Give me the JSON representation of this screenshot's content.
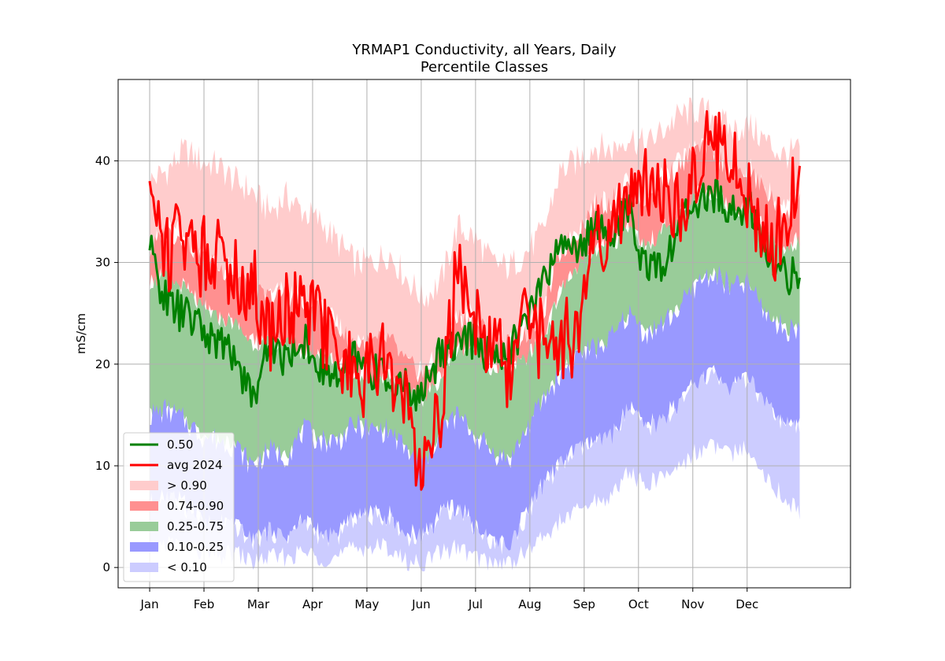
{
  "chart_data": {
    "type": "area",
    "title": "YRMAP1 Conductivity, all Years, Daily",
    "subtitle": "Percentile Classes",
    "xlabel": "",
    "ylabel": "mS/cm",
    "ylim": [
      -2,
      48
    ],
    "xlim": [
      -18,
      400
    ],
    "grid": true,
    "legend_position": "lower-left",
    "x_ticks": [
      {
        "label": "Jan",
        "day": 0
      },
      {
        "label": "Feb",
        "day": 31
      },
      {
        "label": "Mar",
        "day": 62
      },
      {
        "label": "Apr",
        "day": 93
      },
      {
        "label": "May",
        "day": 124
      },
      {
        "label": "Jun",
        "day": 155
      },
      {
        "label": "Jul",
        "day": 186
      },
      {
        "label": "Aug",
        "day": 217
      },
      {
        "label": "Sep",
        "day": 248
      },
      {
        "label": "Oct",
        "day": 279
      },
      {
        "label": "Nov",
        "day": 310
      },
      {
        "label": "Dec",
        "day": 341
      }
    ],
    "y_ticks": [
      0,
      10,
      20,
      30,
      40
    ],
    "x_end": 371,
    "key_days": [
      0,
      15,
      31,
      46,
      62,
      77,
      93,
      108,
      124,
      139,
      155,
      170,
      186,
      201,
      217,
      232,
      248,
      263,
      279,
      294,
      310,
      325,
      341,
      356,
      371
    ],
    "series": [
      {
        "name": "0.50",
        "kind": "line",
        "color": "#008000",
        "values": [
          31.2,
          26.0,
          25.0,
          23.5,
          22.0,
          21.0,
          16.5,
          22.0,
          20.5,
          22.5,
          19.5,
          18.5,
          20.5,
          19.5,
          18.5,
          17.5,
          17.0,
          21.5,
          22.0,
          22.5,
          20.5,
          21.5,
          24.0,
          28.0,
          32.0,
          31.5,
          33.5,
          33.0,
          35.0,
          29.5,
          29.0,
          34.0,
          36.0,
          36.5,
          35.0,
          35.5,
          31.0,
          29.0,
          28.5
        ]
      },
      {
        "name": "avg 2024",
        "kind": "line",
        "color": "#ff0000",
        "values": [
          38.0,
          31.0,
          33.5,
          30.5,
          32.0,
          29.0,
          28.0,
          23.0,
          26.0,
          25.0,
          24.5,
          20.0,
          18.5,
          19.0,
          21.0,
          15.0,
          10.0,
          16.0,
          30.0,
          25.0,
          22.0,
          19.0,
          24.0,
          22.0,
          23.0,
          22.0,
          31.0,
          33.0,
          36.0,
          37.0,
          38.0,
          36.0,
          39.0,
          42.0,
          39.0,
          37.0,
          33.0,
          32.0,
          39.5
        ]
      },
      {
        "name": "> 0.90",
        "kind": "band",
        "color": "#ffcccc",
        "low": [
          31.0,
          33.0,
          32.5,
          30.5,
          29.5,
          29.0,
          27.0,
          26.5,
          27.0,
          25.5,
          25.0,
          23.5,
          22.0,
          22.0,
          22.5,
          20.0,
          19.0,
          21.0,
          24.5,
          24.5,
          22.5,
          22.0,
          23.0,
          25.0,
          31.0,
          33.0,
          35.5,
          36.0,
          37.5,
          36.0,
          38.0,
          39.5,
          41.0,
          41.0,
          38.5,
          39.0,
          37.0,
          35.0,
          36.0
        ],
        "high": [
          38.0,
          39.0,
          41.0,
          40.0,
          39.5,
          38.0,
          37.0,
          35.0,
          36.5,
          35.0,
          34.0,
          32.0,
          30.0,
          30.0,
          31.0,
          28.5,
          26.5,
          28.0,
          33.5,
          32.5,
          30.0,
          29.5,
          31.0,
          33.0,
          39.0,
          40.0,
          41.5,
          41.0,
          42.5,
          41.5,
          43.0,
          44.5,
          45.0,
          44.5,
          43.0,
          43.5,
          42.0,
          40.5,
          41.0
        ]
      },
      {
        "name": "0.74-0.90",
        "kind": "band",
        "color": "#ff9090",
        "low": [
          28.0,
          28.5,
          27.5,
          25.5,
          24.5,
          24.0,
          22.0,
          22.0,
          22.0,
          21.0,
          21.0,
          20.0,
          19.0,
          18.5,
          19.0,
          17.0,
          16.5,
          18.5,
          21.5,
          21.5,
          19.5,
          19.5,
          20.5,
          22.5,
          27.0,
          29.5,
          31.0,
          31.5,
          33.5,
          31.5,
          33.0,
          34.5,
          36.5,
          37.0,
          35.0,
          35.5,
          33.0,
          31.5,
          32.0
        ],
        "high": [
          31.0,
          33.0,
          32.5,
          30.5,
          29.5,
          29.0,
          27.0,
          26.5,
          27.0,
          25.5,
          25.0,
          23.5,
          22.0,
          22.0,
          22.5,
          20.0,
          19.0,
          21.0,
          24.5,
          24.5,
          22.5,
          22.0,
          23.0,
          25.0,
          31.0,
          33.0,
          35.5,
          36.0,
          37.5,
          36.0,
          38.0,
          39.5,
          41.0,
          41.0,
          38.5,
          39.0,
          37.0,
          35.0,
          36.0
        ]
      },
      {
        "name": "0.25-0.75",
        "kind": "band",
        "color": "#99cc99",
        "low": [
          15.0,
          15.5,
          14.5,
          13.0,
          12.5,
          12.0,
          10.0,
          11.5,
          11.0,
          13.5,
          12.5,
          12.5,
          14.0,
          13.5,
          13.5,
          11.5,
          10.0,
          13.5,
          15.0,
          13.0,
          11.5,
          10.5,
          13.5,
          16.5,
          19.0,
          21.0,
          21.5,
          22.5,
          25.0,
          23.0,
          24.0,
          25.5,
          28.0,
          29.0,
          27.5,
          28.0,
          25.0,
          23.5,
          23.5
        ],
        "high": [
          28.0,
          28.5,
          27.5,
          25.5,
          24.5,
          24.0,
          22.0,
          22.0,
          22.0,
          21.0,
          21.0,
          20.0,
          19.0,
          18.5,
          19.0,
          17.0,
          16.5,
          18.5,
          21.5,
          21.5,
          19.5,
          19.5,
          20.5,
          22.5,
          27.0,
          29.5,
          31.0,
          31.5,
          33.5,
          31.5,
          33.0,
          34.5,
          36.5,
          37.0,
          35.0,
          35.5,
          33.0,
          31.5,
          32.0
        ]
      },
      {
        "name": "0.10-0.25",
        "kind": "band",
        "color": "#9999ff",
        "low": [
          6.0,
          7.0,
          6.0,
          4.5,
          4.0,
          4.0,
          2.5,
          3.5,
          3.0,
          4.5,
          3.0,
          3.0,
          5.0,
          5.0,
          5.0,
          3.0,
          3.0,
          5.0,
          6.0,
          4.0,
          2.5,
          2.0,
          5.0,
          8.0,
          10.0,
          11.5,
          12.0,
          13.0,
          15.5,
          13.5,
          14.5,
          16.0,
          18.0,
          19.0,
          17.5,
          18.5,
          16.0,
          14.0,
          13.5
        ],
        "high": [
          15.0,
          15.5,
          14.5,
          13.0,
          12.5,
          12.0,
          10.0,
          11.5,
          11.0,
          13.5,
          12.5,
          12.5,
          14.0,
          13.5,
          13.5,
          11.5,
          10.0,
          13.5,
          15.0,
          13.0,
          11.5,
          10.5,
          13.5,
          16.5,
          19.0,
          21.0,
          21.5,
          22.5,
          25.0,
          23.0,
          24.0,
          25.5,
          28.0,
          29.0,
          27.5,
          28.0,
          25.0,
          23.5,
          23.5
        ]
      },
      {
        "name": "< 0.10",
        "kind": "band",
        "color": "#ccccff",
        "low": [
          1.5,
          2.5,
          2.0,
          1.5,
          1.0,
          1.5,
          0.5,
          1.0,
          1.0,
          1.5,
          1.0,
          1.0,
          2.0,
          2.0,
          2.0,
          0.5,
          0.5,
          1.5,
          2.0,
          1.0,
          0.5,
          0.5,
          1.5,
          3.0,
          4.5,
          5.5,
          6.5,
          7.0,
          9.5,
          8.0,
          9.0,
          10.0,
          11.5,
          12.0,
          11.0,
          12.0,
          9.0,
          7.0,
          5.5
        ],
        "high": [
          6.0,
          7.0,
          6.0,
          4.5,
          4.0,
          4.0,
          2.5,
          3.5,
          3.0,
          4.5,
          3.0,
          3.0,
          5.0,
          5.0,
          5.0,
          3.0,
          3.0,
          5.0,
          6.0,
          4.0,
          2.5,
          2.0,
          5.0,
          8.0,
          10.0,
          11.5,
          12.0,
          13.0,
          15.5,
          13.5,
          14.5,
          16.0,
          18.0,
          19.0,
          17.5,
          18.5,
          16.0,
          14.0,
          13.5
        ]
      }
    ],
    "legend": [
      {
        "label": "0.50",
        "kind": "line",
        "color": "#008000"
      },
      {
        "label": "avg 2024",
        "kind": "line",
        "color": "#ff0000"
      },
      {
        "label": "> 0.90",
        "kind": "patch",
        "color": "#ffcccc"
      },
      {
        "label": "0.74-0.90",
        "kind": "patch",
        "color": "#ff9090"
      },
      {
        "label": "0.25-0.75",
        "kind": "patch",
        "color": "#99cc99"
      },
      {
        "label": "0.10-0.25",
        "kind": "patch",
        "color": "#9999ff"
      },
      {
        "label": "< 0.10",
        "kind": "patch",
        "color": "#ccccff"
      }
    ]
  }
}
